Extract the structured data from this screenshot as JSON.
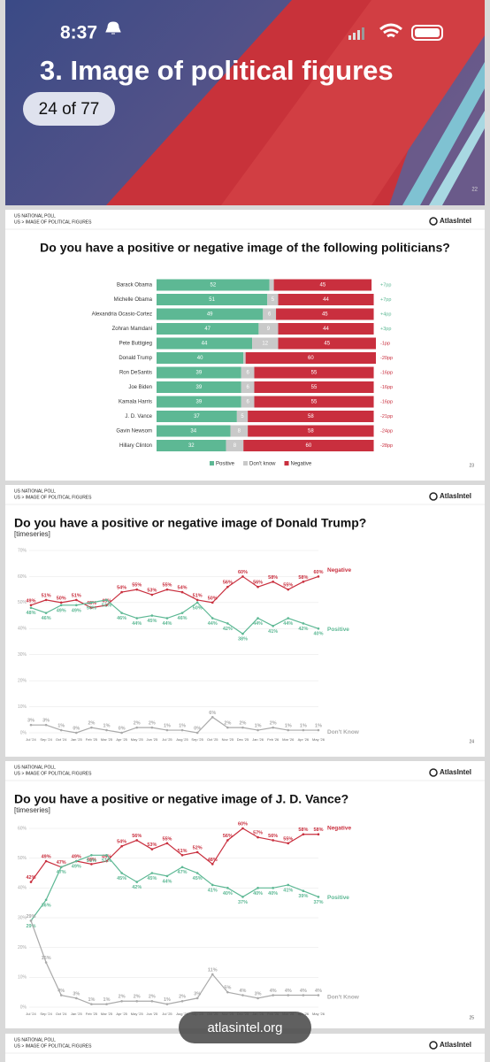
{
  "status_bar": {
    "time": "8:37"
  },
  "cover": {
    "title": "3. Image of political figures",
    "counter": "24 of 77",
    "page": "22"
  },
  "slides": [
    {
      "header": {
        "kicker": "US NATIONAL POLL",
        "breadcrumb": "US > IMAGE OF POLITICAL FIGURES",
        "brand": "AtlasIntel"
      },
      "page": "23",
      "chart_data": {
        "type": "bar",
        "orientation": "horizontal",
        "stacked": true,
        "title": "Do you have a positive or negative image of the following politicians?",
        "categories": [
          "Barack Obama",
          "Michelle Obama",
          "Alexandria Ocasio-Cortez",
          "Zohran Mamdani",
          "Pete Buttigieg",
          "Donald Trump",
          "Ron DeSantis",
          "Joe Biden",
          "Kamala Harris",
          "J. D. Vance",
          "Gavin Newsom",
          "Hillary Clinton"
        ],
        "series": [
          {
            "name": "Positive",
            "color": "#5db894",
            "values": [
              52,
              51,
              49,
              47,
              44,
              40,
              39,
              39,
              39,
              37,
              34,
              32
            ]
          },
          {
            "name": "Don't know",
            "color": "#c9c9c9",
            "values": [
              2,
              5,
              6,
              9,
              12,
              1,
              6,
              6,
              6,
              5,
              8,
              8
            ]
          },
          {
            "name": "Negative",
            "color": "#c92f3e",
            "values": [
              45,
              44,
              45,
              44,
              45,
              60,
              55,
              55,
              55,
              58,
              58,
              60
            ]
          }
        ],
        "net": {
          "values": [
            7,
            7,
            4,
            3,
            -1,
            -20,
            -16,
            -16,
            -16,
            -21,
            -24,
            -28
          ],
          "value_labels": [
            "+7pp",
            "+7pp",
            "+4pp",
            "+3pp",
            "-1pp",
            "-20pp",
            "-16pp",
            "-16pp",
            "-16pp",
            "-21pp",
            "-24pp",
            "-28pp"
          ]
        },
        "xlim": [
          0,
          101
        ],
        "legend": "bottom"
      }
    },
    {
      "header": {
        "kicker": "US NATIONAL POLL",
        "breadcrumb": "US > IMAGE OF POLITICAL FIGURES",
        "brand": "AtlasIntel"
      },
      "page": "24",
      "chart_data": {
        "type": "line",
        "title": "Do you have a positive or negative image of Donald Trump?",
        "subtitle": "[timeseries]",
        "categories": [
          "Jul '24",
          "Sep '24",
          "Oct '24",
          "Jan '25",
          "Feb '25",
          "Mar '25",
          "Apr '25",
          "May '25",
          "Jun '25",
          "Jul '25",
          "Aug '25",
          "Sep '25",
          "Oct '25",
          "Nov '25",
          "Dec '25",
          "Jan '26",
          "Feb '26",
          "Mar '26",
          "Apr '26",
          "May '26"
        ],
        "series": [
          {
            "name": "Negative",
            "color": "#c92f3e",
            "values": [
              49,
              51,
              50,
              51,
              48,
              49,
              54,
              55,
              53,
              55,
              54,
              51,
              50,
              56,
              60,
              56,
              58,
              55,
              58,
              60
            ],
            "value_labels": [
              "49%",
              "51%",
              "50%",
              "51%",
              "48%",
              "49%",
              "54%",
              "55%",
              "53%",
              "55%",
              "54%",
              "51%",
              "50%",
              "56%",
              "60%",
              "56%",
              "58%",
              "55%",
              "58%",
              "60%"
            ]
          },
          {
            "name": "Positive",
            "color": "#5db894",
            "values": [
              48,
              46,
              49,
              49,
              50,
              51,
              46,
              44,
              45,
              44,
              46,
              50,
              44,
              42,
              38,
              44,
              41,
              44,
              42,
              40
            ],
            "value_labels": [
              "48%",
              "46%",
              "49%",
              "49%",
              "50%",
              "51%",
              "46%",
              "44%",
              "45%",
              "44%",
              "46%",
              "50%",
              "44%",
              "42%",
              "38%",
              "44%",
              "41%",
              "44%",
              "42%",
              "40%"
            ]
          },
          {
            "name": "Don't Know",
            "color": "#aaaaaa",
            "values": [
              3,
              3,
              1,
              0,
              2,
              1,
              0,
              2,
              2,
              1,
              1,
              0,
              6,
              2,
              2,
              1,
              2,
              1,
              1,
              1
            ],
            "value_labels": [
              "3%",
              "3%",
              "1%",
              "0%",
              "2%",
              "1%",
              "0%",
              "2%",
              "2%",
              "1%",
              "1%",
              "0%",
              "6%",
              "2%",
              "2%",
              "1%",
              "2%",
              "1%",
              "1%",
              "1%"
            ]
          }
        ],
        "ylim": [
          0,
          70
        ],
        "yticks": [
          {
            "value": 0,
            "label": "0%"
          },
          {
            "value": 10,
            "label": "10%"
          },
          {
            "value": 20,
            "label": "20%"
          },
          {
            "value": 30,
            "label": "30%"
          },
          {
            "value": 40,
            "label": "40%"
          },
          {
            "value": 50,
            "label": "50%"
          },
          {
            "value": 60,
            "label": "60%"
          },
          {
            "value": 70,
            "label": "70%"
          }
        ],
        "grid": true
      }
    },
    {
      "header": {
        "kicker": "US NATIONAL POLL",
        "breadcrumb": "US > IMAGE OF POLITICAL FIGURES",
        "brand": "AtlasIntel"
      },
      "page": "25",
      "chart_data": {
        "type": "line",
        "title": "Do you have a positive or negative image of J. D. Vance?",
        "subtitle": "[timeseries]",
        "categories": [
          "Jul '24",
          "Sep '24",
          "Oct '24",
          "Jan '25",
          "Feb '25",
          "Mar '25",
          "Apr '25",
          "May '25",
          "Jun '25",
          "Jul '25",
          "Aug '25",
          "Sep '25",
          "Oct '25",
          "Nov '25",
          "Dec '25",
          "Jan '26",
          "Feb '26",
          "Mar '26",
          "Apr '26",
          "May '26"
        ],
        "series": [
          {
            "name": "Negative",
            "color": "#c92f3e",
            "values": [
              42,
              49,
              47,
              49,
              48,
              49,
              54,
              56,
              53,
              55,
              51,
              52,
              48,
              56,
              60,
              57,
              56,
              55,
              58,
              58
            ],
            "value_labels": [
              "42%",
              "49%",
              "47%",
              "49%",
              "48%",
              "49%",
              "54%",
              "56%",
              "53%",
              "55%",
              "51%",
              "52%",
              "48%",
              "56%",
              "60%",
              "57%",
              "56%",
              "55%",
              "58%",
              "58%"
            ]
          },
          {
            "name": "Positive",
            "color": "#5db894",
            "values": [
              29,
              36,
              47,
              49,
              51,
              51,
              45,
              42,
              45,
              44,
              47,
              45,
              41,
              40,
              37,
              40,
              40,
              41,
              39,
              37
            ],
            "value_labels": [
              "29%",
              "36%",
              "47%",
              "49%",
              "51%",
              "51%",
              "45%",
              "42%",
              "45%",
              "44%",
              "47%",
              "45%",
              "41%",
              "40%",
              "37%",
              "40%",
              "40%",
              "41%",
              "39%",
              "37%"
            ]
          },
          {
            "name": "Don't Know",
            "color": "#aaaaaa",
            "values": [
              29,
              15,
              4,
              3,
              1,
              1,
              2,
              2,
              2,
              1,
              2,
              3,
              11,
              5,
              4,
              3,
              4,
              4,
              4,
              4
            ],
            "value_labels": [
              "29%",
              "15%",
              "4%",
              "3%",
              "1%",
              "1%",
              "2%",
              "2%",
              "2%",
              "1%",
              "2%",
              "3%",
              "11%",
              "5%",
              "4%",
              "3%",
              "4%",
              "4%",
              "4%",
              "4%"
            ]
          }
        ],
        "ylim": [
          0,
          60
        ],
        "yticks": [
          {
            "value": 0,
            "label": "0%"
          },
          {
            "value": 10,
            "label": "10%"
          },
          {
            "value": 20,
            "label": "20%"
          },
          {
            "value": 30,
            "label": "30%"
          },
          {
            "value": 40,
            "label": "40%"
          },
          {
            "value": 50,
            "label": "50%"
          },
          {
            "value": 60,
            "label": "60%"
          }
        ],
        "grid": true
      }
    },
    {
      "header": {
        "kicker": "US NATIONAL POLL",
        "breadcrumb": "US > IMAGE OF POLITICAL FIGURES",
        "brand": "AtlasIntel"
      }
    }
  ],
  "footer": {
    "url": "atlasintel.org"
  }
}
